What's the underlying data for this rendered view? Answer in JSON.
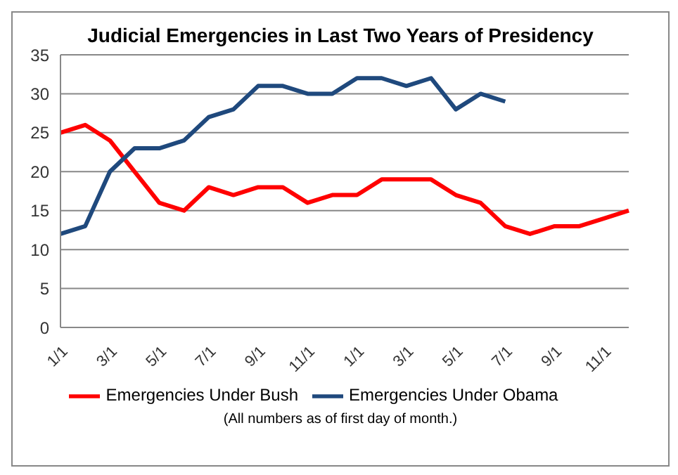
{
  "chart_data": {
    "type": "line",
    "title": "Judicial Emergencies in Last Two Years of Presidency",
    "categories": [
      "1/1",
      null,
      "3/1",
      null,
      "5/1",
      null,
      "7/1",
      null,
      "9/1",
      null,
      "11/1",
      null,
      "1/1",
      null,
      "3/1",
      null,
      "5/1",
      null,
      "7/1",
      null,
      "9/1",
      null,
      "11/1",
      null
    ],
    "series": [
      {
        "name": "Emergencies Under Bush",
        "color": "#ff0000",
        "values": [
          25,
          26,
          24,
          20,
          16,
          15,
          18,
          17,
          18,
          18,
          16,
          17,
          17,
          19,
          19,
          19,
          17,
          16,
          13,
          12,
          13,
          13,
          14,
          15
        ]
      },
      {
        "name": "Emergencies Under Obama",
        "color": "#1f497d",
        "values": [
          12,
          13,
          20,
          23,
          23,
          24,
          27,
          28,
          31,
          31,
          30,
          30,
          32,
          32,
          31,
          32,
          28,
          30,
          29,
          null,
          null,
          null,
          null,
          null
        ]
      }
    ],
    "ylim": [
      0,
      35
    ],
    "yticks": [
      0,
      5,
      10,
      15,
      20,
      25,
      30,
      35
    ],
    "grid": "y",
    "legend": "bottom",
    "marker": "none",
    "line_style": "solid",
    "annotations": [
      "(All numbers as of first day of month.)"
    ]
  }
}
